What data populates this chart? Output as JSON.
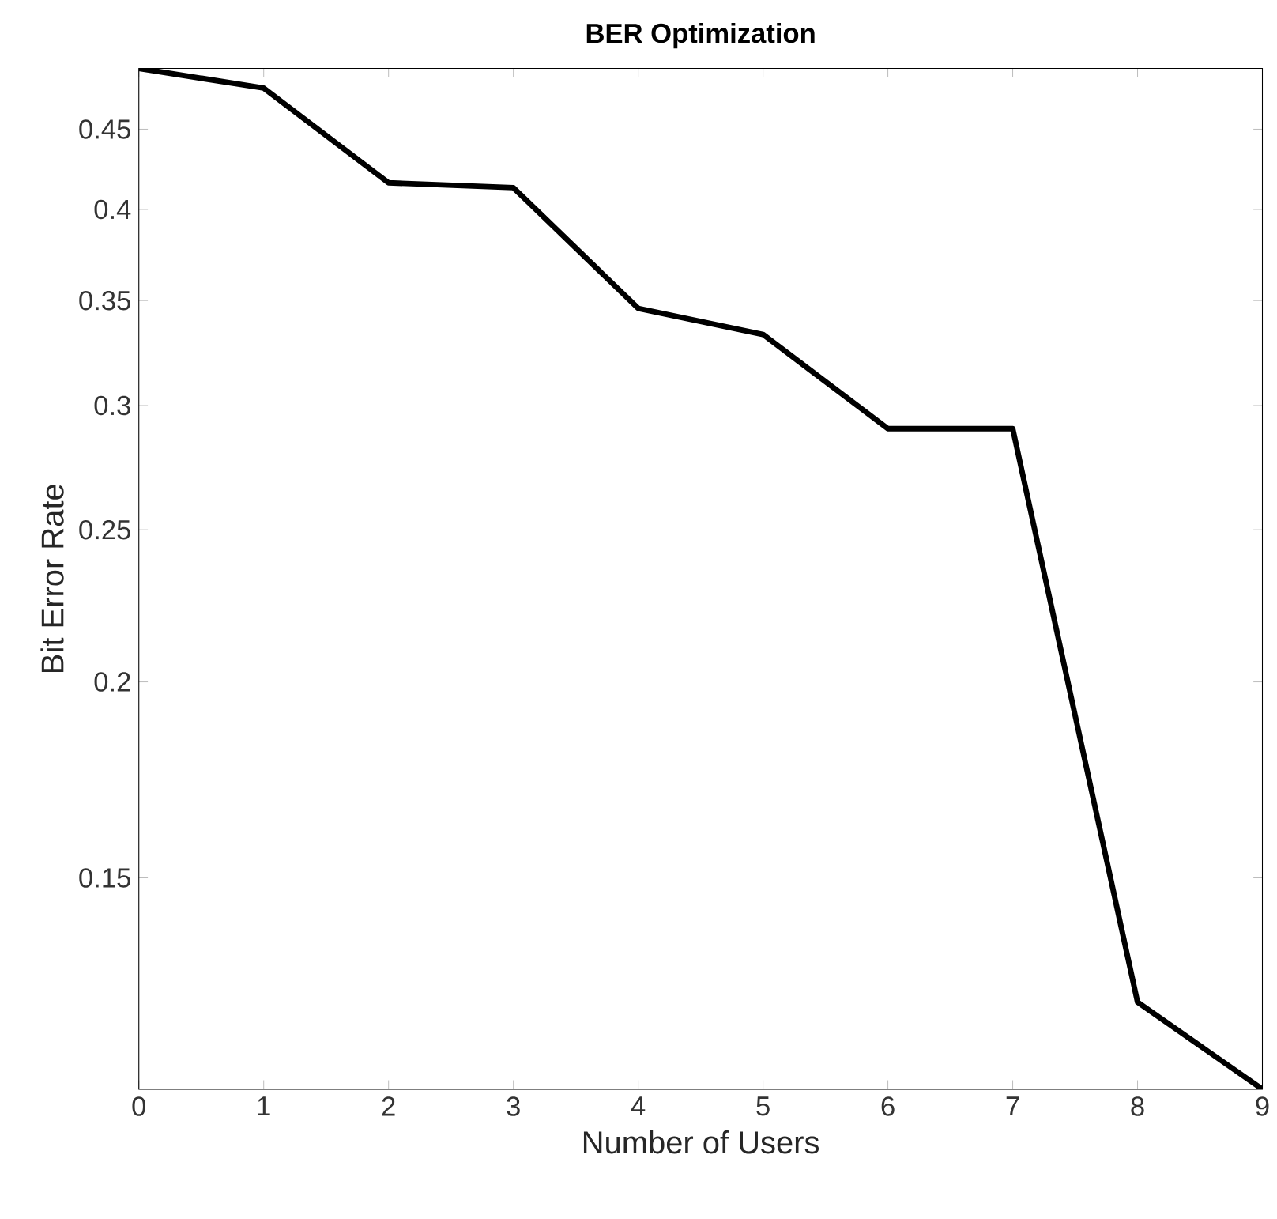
{
  "chart_data": {
    "type": "line",
    "title": "BER Optimization",
    "xlabel": "Number of Users",
    "ylabel": "Bit Error Rate",
    "x": [
      0,
      1,
      2,
      3,
      4,
      5,
      6,
      7,
      8,
      9
    ],
    "values": [
      0.492,
      0.478,
      0.416,
      0.413,
      0.346,
      0.333,
      0.29,
      0.29,
      0.125,
      0.11
    ],
    "color": "#000000",
    "xlim": [
      0,
      9
    ],
    "xticks": [
      0,
      1,
      2,
      3,
      4,
      5,
      6,
      7,
      8,
      9
    ],
    "ylim": [
      0.11,
      0.492
    ],
    "yticks": [
      0.15,
      0.2,
      0.25,
      0.3,
      0.35,
      0.4,
      0.45
    ],
    "log": "y",
    "grid": false,
    "marker": "none",
    "line_style": "solid"
  }
}
